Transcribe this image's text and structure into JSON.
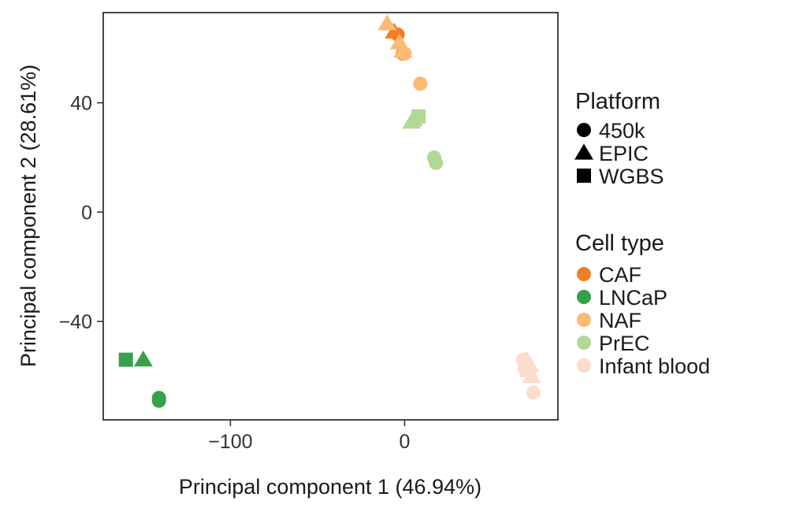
{
  "chart_data": {
    "type": "scatter",
    "xlabel": "Principal component 1 (46.94%)",
    "ylabel": "Principal component 2 (28.61%)",
    "xlim": [
      -173,
      88
    ],
    "ylim": [
      -76,
      73
    ],
    "x_ticks": [
      -100,
      0
    ],
    "y_ticks": [
      -40,
      0,
      40
    ],
    "tick_labels": {
      "x": [
        "−100",
        "0"
      ],
      "y": [
        "−40",
        "0",
        "40"
      ]
    },
    "grid": false,
    "legend_position": "right",
    "legends": {
      "platform": {
        "title": "Platform",
        "items": [
          {
            "label": "450k",
            "shape": "circle"
          },
          {
            "label": "EPIC",
            "shape": "triangle"
          },
          {
            "label": "WGBS",
            "shape": "square"
          }
        ]
      },
      "cell_type": {
        "title": "Cell type",
        "items": [
          {
            "label": "CAF",
            "color": "#F07E26"
          },
          {
            "label": "LNCaP",
            "color": "#35A14A"
          },
          {
            "label": "NAF",
            "color": "#FCBA72"
          },
          {
            "label": "PrEC",
            "color": "#B1D996"
          },
          {
            "label": "Infant blood",
            "color": "#FCDCCC"
          }
        ]
      }
    },
    "points": [
      {
        "x": -4,
        "y": 65,
        "platform": "450k",
        "cell_type": "CAF"
      },
      {
        "x": -6,
        "y": 66,
        "platform": "EPIC",
        "cell_type": "CAF"
      },
      {
        "x": -1,
        "y": 58,
        "platform": "450k",
        "cell_type": "CAF"
      },
      {
        "x": -10,
        "y": 69,
        "platform": "EPIC",
        "cell_type": "NAF"
      },
      {
        "x": -3,
        "y": 62,
        "platform": "EPIC",
        "cell_type": "NAF"
      },
      {
        "x": -1,
        "y": 59,
        "platform": "EPIC",
        "cell_type": "NAF"
      },
      {
        "x": 0,
        "y": 58,
        "platform": "450k",
        "cell_type": "NAF"
      },
      {
        "x": 9,
        "y": 47,
        "platform": "450k",
        "cell_type": "NAF"
      },
      {
        "x": 8,
        "y": 35,
        "platform": "WGBS",
        "cell_type": "PrEC"
      },
      {
        "x": 5,
        "y": 34,
        "platform": "EPIC",
        "cell_type": "PrEC"
      },
      {
        "x": 4,
        "y": 33,
        "platform": "EPIC",
        "cell_type": "PrEC"
      },
      {
        "x": 17,
        "y": 20,
        "platform": "450k",
        "cell_type": "PrEC"
      },
      {
        "x": 18,
        "y": 18,
        "platform": "450k",
        "cell_type": "PrEC"
      },
      {
        "x": -160,
        "y": -54,
        "platform": "WGBS",
        "cell_type": "LNCaP"
      },
      {
        "x": -150,
        "y": -54,
        "platform": "EPIC",
        "cell_type": "LNCaP"
      },
      {
        "x": -141,
        "y": -68,
        "platform": "450k",
        "cell_type": "LNCaP"
      },
      {
        "x": -141,
        "y": -69,
        "platform": "450k",
        "cell_type": "LNCaP"
      },
      {
        "x": 68,
        "y": -54,
        "platform": "450k",
        "cell_type": "Infant blood"
      },
      {
        "x": 70,
        "y": -54,
        "platform": "EPIC",
        "cell_type": "Infant blood"
      },
      {
        "x": 72,
        "y": -56,
        "platform": "EPIC",
        "cell_type": "Infant blood"
      },
      {
        "x": 71,
        "y": -58,
        "platform": "EPIC",
        "cell_type": "Infant blood"
      },
      {
        "x": 73,
        "y": -60,
        "platform": "EPIC",
        "cell_type": "Infant blood"
      },
      {
        "x": 69,
        "y": -57,
        "platform": "450k",
        "cell_type": "Infant blood"
      },
      {
        "x": 74,
        "y": -66,
        "platform": "450k",
        "cell_type": "Infant blood"
      }
    ]
  }
}
